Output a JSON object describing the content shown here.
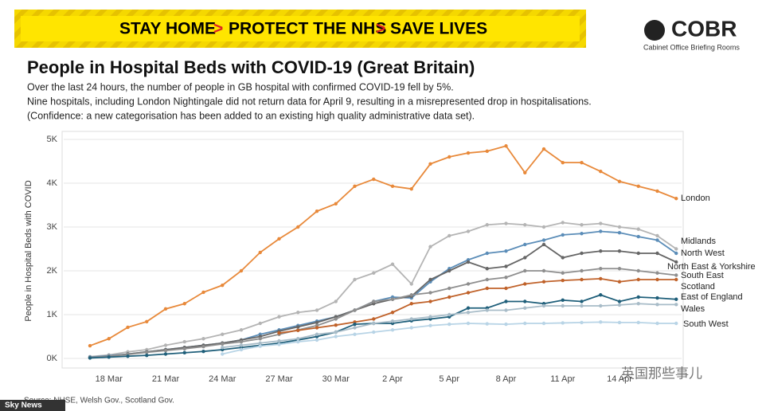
{
  "banner": [
    "STAY HOME",
    "PROTECT THE NHS",
    "SAVE LIVES"
  ],
  "banner_separator": ">",
  "logo": {
    "name": "COBR",
    "subtitle": "Cabinet Office Briefing Rooms"
  },
  "broadcaster": "Sky News",
  "watermark": "英国那些事儿",
  "chart_data": {
    "type": "line",
    "title": "People in Hospital Beds with COVID-19 (Great Britain)",
    "subtitle": [
      "Over the last 24 hours, the number of people in GB hospital with confirmed COVID-19 fell by 5%.",
      "Nine hospitals, including London Nightingale did not return data for April 9, resulting in a misrepresented drop in hospitalisations.",
      "(Confidence: a new categorisation has been added to an existing high quality administrative data set)."
    ],
    "y_label": "People in Hospital Beds with COVID",
    "source": "Source: NHSE, Welsh Gov., Scotland Gov.",
    "categories": [
      null,
      "18 Mar",
      null,
      null,
      "21 Mar",
      null,
      null,
      "24 Mar",
      null,
      null,
      "27 Mar",
      null,
      null,
      "30 Mar",
      null,
      null,
      "2 Apr",
      null,
      null,
      "5 Apr",
      null,
      null,
      "8 Apr",
      null,
      null,
      "11 Apr",
      null,
      null,
      "14 Apr",
      null,
      null,
      null
    ],
    "ylim": [
      0,
      5000
    ],
    "yticks": [
      {
        "value": 0,
        "label": "0K"
      },
      {
        "value": 1000,
        "label": "1K"
      },
      {
        "value": 2000,
        "label": "2K"
      },
      {
        "value": 3000,
        "label": "3K"
      },
      {
        "value": 4000,
        "label": "4K"
      },
      {
        "value": 5000,
        "label": "5K"
      }
    ],
    "grid": true,
    "series": [
      {
        "name": "London",
        "color": "#e8893a",
        "values": [
          290,
          450,
          710,
          840,
          1130,
          1250,
          1510,
          1670,
          2000,
          2420,
          2730,
          3000,
          3360,
          3530,
          3930,
          4090,
          3930,
          3870,
          4440,
          4600,
          4690,
          4730,
          4850,
          4240,
          4780,
          4470,
          4470,
          4270,
          4040,
          3930,
          3820,
          3650
        ]
      },
      {
        "name": "Midlands",
        "color": "#b4b4b4",
        "values": [
          40,
          80,
          150,
          200,
          300,
          380,
          450,
          550,
          650,
          800,
          950,
          1050,
          1100,
          1300,
          1800,
          1950,
          2150,
          1700,
          2550,
          2800,
          2900,
          3050,
          3080,
          3050,
          3000,
          3100,
          3050,
          3080,
          3000,
          2950,
          2800,
          2500
        ]
      },
      {
        "name": "North West",
        "color": "#5b8db8",
        "values": [
          30,
          60,
          100,
          150,
          200,
          250,
          300,
          350,
          420,
          550,
          650,
          750,
          850,
          950,
          1100,
          1300,
          1400,
          1380,
          1750,
          2050,
          2250,
          2400,
          2450,
          2600,
          2700,
          2820,
          2850,
          2900,
          2870,
          2780,
          2700,
          2400
        ]
      },
      {
        "name": "North East & Yorkshire",
        "color": "#666666",
        "values": [
          20,
          50,
          100,
          150,
          200,
          250,
          300,
          350,
          420,
          500,
          620,
          720,
          820,
          950,
          1100,
          1250,
          1350,
          1420,
          1800,
          2000,
          2200,
          2050,
          2100,
          2300,
          2600,
          2300,
          2400,
          2450,
          2450,
          2400,
          2400,
          2200
        ]
      },
      {
        "name": "South East",
        "color": "#8e8e8e",
        "values": [
          20,
          50,
          90,
          140,
          180,
          220,
          270,
          330,
          380,
          450,
          550,
          650,
          750,
          900,
          1100,
          1300,
          1350,
          1450,
          1500,
          1600,
          1700,
          1800,
          1850,
          2000,
          2000,
          1950,
          2000,
          2050,
          2050,
          2000,
          1950,
          1900
        ]
      },
      {
        "name": "Scotland",
        "color": "#c0622a",
        "values": [
          null,
          null,
          null,
          null,
          null,
          null,
          null,
          null,
          null,
          null,
          580,
          640,
          700,
          760,
          830,
          900,
          1050,
          1250,
          1300,
          1400,
          1500,
          1600,
          1600,
          1700,
          1750,
          1780,
          1800,
          1820,
          1750,
          1800,
          1800,
          1800
        ]
      },
      {
        "name": "East of England",
        "color": "#1f5f7a",
        "values": [
          10,
          30,
          50,
          70,
          100,
          130,
          160,
          200,
          250,
          300,
          350,
          420,
          500,
          600,
          780,
          800,
          800,
          860,
          900,
          950,
          1150,
          1150,
          1300,
          1300,
          1250,
          1330,
          1300,
          1450,
          1300,
          1400,
          1380,
          1350
        ]
      },
      {
        "name": "Wales",
        "color": "#a8bcc8",
        "values": [
          null,
          null,
          null,
          null,
          null,
          null,
          null,
          250,
          300,
          350,
          400,
          450,
          550,
          600,
          700,
          800,
          850,
          900,
          950,
          1000,
          1050,
          1100,
          1100,
          1150,
          1200,
          1200,
          1200,
          1200,
          1220,
          1250,
          1230,
          1230
        ]
      },
      {
        "name": "South West",
        "color": "#b8d4e6",
        "values": [
          null,
          null,
          null,
          null,
          null,
          null,
          null,
          100,
          200,
          280,
          320,
          380,
          420,
          500,
          550,
          600,
          650,
          700,
          750,
          780,
          800,
          790,
          780,
          800,
          800,
          810,
          820,
          830,
          820,
          820,
          800,
          800
        ]
      }
    ]
  }
}
